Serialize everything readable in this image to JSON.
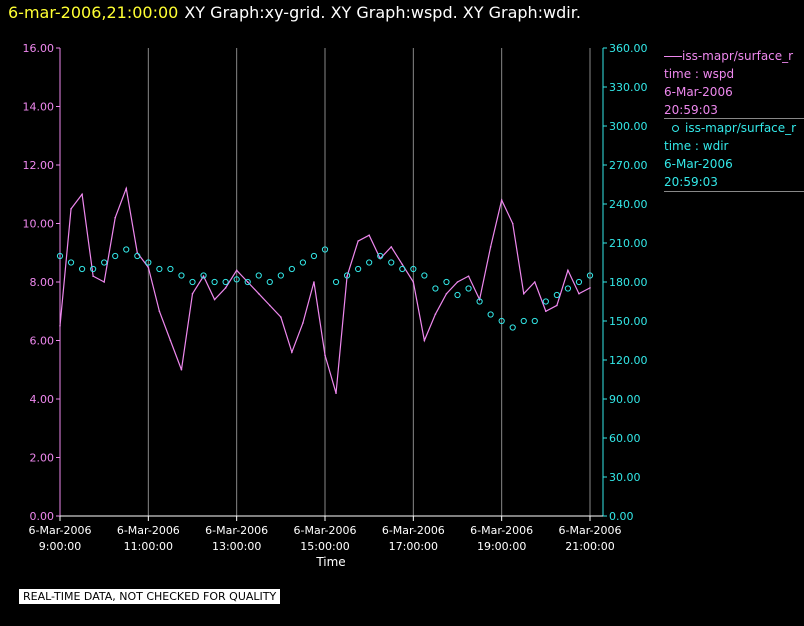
{
  "header": {
    "timestamp": "6-mar-2006,21:00:00",
    "graphs": "XY Graph:xy-grid.  XY Graph:wspd.  XY Graph:wdir."
  },
  "legend": {
    "wspd": {
      "name": "iss-mapr/surface_r",
      "line1": "time : wspd",
      "line2": "6-Mar-2006",
      "line3": "20:59:03"
    },
    "wdir": {
      "name": "iss-mapr/surface_r",
      "line1": "time : wdir",
      "line2": "6-Mar-2006",
      "line3": "20:59:03"
    }
  },
  "disclaimer": "REAL-TIME DATA, NOT CHECKED FOR QUALITY",
  "colors": {
    "wspd": "#ee88ee",
    "wdir": "#33e8e8",
    "grid": "#888888",
    "axis_x": "#ffffff"
  },
  "chart_data": {
    "type": "line",
    "xlabel": "Time",
    "x_ticks": [
      {
        "hour": 9,
        "date": "6-Mar-2006",
        "time": "9:00:00"
      },
      {
        "hour": 11,
        "date": "6-Mar-2006",
        "time": "11:00:00"
      },
      {
        "hour": 13,
        "date": "6-Mar-2006",
        "time": "13:00:00"
      },
      {
        "hour": 15,
        "date": "6-Mar-2006",
        "time": "15:00:00"
      },
      {
        "hour": 17,
        "date": "6-Mar-2006",
        "time": "17:00:00"
      },
      {
        "hour": 19,
        "date": "6-Mar-2006",
        "time": "19:00:00"
      },
      {
        "hour": 21,
        "date": "6-Mar-2006",
        "time": "21:00:00"
      }
    ],
    "xlim_hours": [
      9.0,
      21.0
    ],
    "left_axis": {
      "ylim": [
        0,
        16
      ],
      "ticks": [
        "0.00",
        "2.00",
        "4.00",
        "6.00",
        "8.00",
        "10.00",
        "12.00",
        "14.00",
        "16.00"
      ]
    },
    "right_axis": {
      "ylim": [
        0,
        360
      ],
      "ticks": [
        "0.00",
        "30.00",
        "60.00",
        "90.00",
        "120.00",
        "150.00",
        "180.00",
        "210.00",
        "240.00",
        "270.00",
        "300.00",
        "330.00",
        "360.00"
      ]
    },
    "grid": "vertical",
    "series": [
      {
        "name": "iss-mapr/surface_r time : wspd",
        "axis": "left",
        "style": "line",
        "x": [
          9.0,
          9.25,
          9.5,
          9.75,
          10.0,
          10.25,
          10.5,
          10.75,
          11.0,
          11.25,
          11.5,
          11.75,
          12.0,
          12.25,
          12.5,
          12.75,
          13.0,
          13.25,
          13.5,
          13.75,
          14.0,
          14.25,
          14.5,
          14.75,
          15.0,
          15.25,
          15.5,
          15.75,
          16.0,
          16.25,
          16.5,
          16.75,
          17.0,
          17.25,
          17.5,
          17.75,
          18.0,
          18.25,
          18.5,
          18.75,
          19.0,
          19.25,
          19.5,
          19.75,
          20.0,
          20.25,
          20.5,
          20.75,
          21.0
        ],
        "y": [
          6.5,
          10.5,
          11.0,
          8.2,
          8.0,
          10.2,
          11.2,
          9.0,
          8.5,
          7.0,
          6.0,
          5.0,
          7.6,
          8.2,
          7.4,
          7.8,
          8.4,
          8.0,
          7.6,
          7.2,
          6.8,
          5.6,
          6.6,
          8.0,
          5.5,
          4.2,
          8.2,
          9.4,
          9.6,
          8.8,
          9.2,
          8.6,
          8.0,
          6.0,
          6.9,
          7.6,
          8.0,
          8.2,
          7.4,
          9.2,
          10.8,
          10.0,
          7.6,
          8.0,
          7.0,
          7.2,
          8.4,
          7.6,
          7.8
        ]
      },
      {
        "name": "iss-mapr/surface_r time : wdir",
        "axis": "right",
        "style": "circles",
        "x": [
          9.0,
          9.25,
          9.5,
          9.75,
          10.0,
          10.25,
          10.5,
          10.75,
          11.0,
          11.25,
          11.5,
          11.75,
          12.0,
          12.25,
          12.5,
          12.75,
          13.0,
          13.25,
          13.5,
          13.75,
          14.0,
          14.25,
          14.5,
          14.75,
          15.0,
          15.25,
          15.5,
          15.75,
          16.0,
          16.25,
          16.5,
          16.75,
          17.0,
          17.25,
          17.5,
          17.75,
          18.0,
          18.25,
          18.5,
          18.75,
          19.0,
          19.25,
          19.5,
          19.75,
          20.0,
          20.25,
          20.5,
          20.75,
          21.0
        ],
        "y": [
          200,
          195,
          190,
          190,
          195,
          200,
          205,
          200,
          195,
          190,
          190,
          185,
          180,
          185,
          180,
          180,
          182,
          180,
          185,
          180,
          185,
          190,
          195,
          200,
          205,
          180,
          185,
          190,
          195,
          200,
          195,
          190,
          190,
          185,
          175,
          180,
          170,
          175,
          165,
          155,
          150,
          145,
          150,
          150,
          165,
          170,
          175,
          180,
          185
        ]
      }
    ]
  }
}
